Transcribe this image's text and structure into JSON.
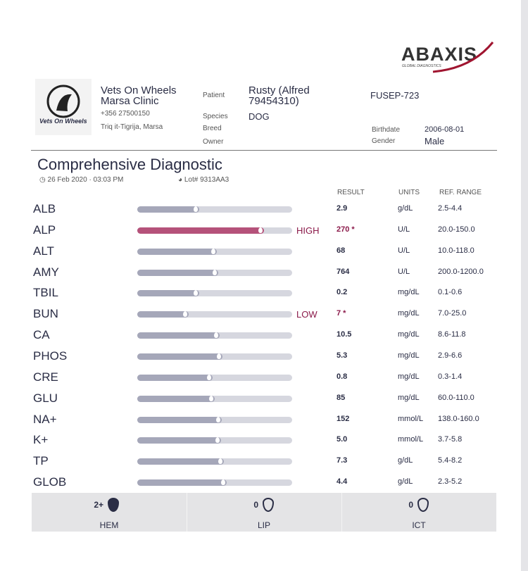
{
  "header": {
    "brand": "ABAXIS",
    "tagline": "GLOBAL DIAGNOSTICS",
    "logo_text": "Vets On Wheels",
    "clinic_name": "Vets On Wheels",
    "clinic_branch": "Marsa Clinic",
    "phone": "+356 27500150",
    "address": "Triq it-Tigrija, Marsa"
  },
  "patient": {
    "labels": [
      "Patient",
      "Species",
      "Breed",
      "Owner"
    ],
    "name": "Rusty (Alfred 79454310)",
    "species": "DOG",
    "id": "FUSEP-723",
    "birthdate_label": "Birthdate",
    "birthdate": "2006-08-01",
    "gender_label": "Gender",
    "gender": "Male"
  },
  "report": {
    "title": "Comprehensive Diagnostic",
    "date": "26 Feb 2020 · 03:03 PM",
    "lot": "Lot# 9313AA3"
  },
  "table": {
    "columns": [
      "RESULT",
      "UNITS",
      "REF. RANGE"
    ],
    "rows": [
      {
        "test": "ALB",
        "flag": null,
        "result": "2.9",
        "units": "g/dL",
        "range": "2.5-4.4"
      },
      {
        "test": "ALP",
        "flag": "HIGH",
        "result": "270 *",
        "units": "U/L",
        "range": "20.0-150.0"
      },
      {
        "test": "ALT",
        "flag": null,
        "result": "68",
        "units": "U/L",
        "range": "10.0-118.0"
      },
      {
        "test": "AMY",
        "flag": null,
        "result": "764",
        "units": "U/L",
        "range": "200.0-1200.0"
      },
      {
        "test": "TBIL",
        "flag": null,
        "result": "0.2",
        "units": "mg/dL",
        "range": "0.1-0.6"
      },
      {
        "test": "BUN",
        "flag": "LOW",
        "result": "7 *",
        "units": "mg/dL",
        "range": "7.0-25.0"
      },
      {
        "test": "CA",
        "flag": null,
        "result": "10.5",
        "units": "mg/dL",
        "range": "8.6-11.8"
      },
      {
        "test": "PHOS",
        "flag": null,
        "result": "5.3",
        "units": "mg/dL",
        "range": "2.9-6.6"
      },
      {
        "test": "CRE",
        "flag": null,
        "result": "0.8",
        "units": "mg/dL",
        "range": "0.3-1.4"
      },
      {
        "test": "GLU",
        "flag": null,
        "result": "85",
        "units": "mg/dL",
        "range": "60.0-110.0"
      },
      {
        "test": "NA+",
        "flag": null,
        "result": "152",
        "units": "mmol/L",
        "range": "138.0-160.0"
      },
      {
        "test": "K+",
        "flag": null,
        "result": "5.0",
        "units": "mmol/L",
        "range": "3.7-5.8"
      },
      {
        "test": "TP",
        "flag": null,
        "result": "7.3",
        "units": "g/dL",
        "range": "5.4-8.2"
      },
      {
        "test": "GLOB",
        "flag": null,
        "result": "4.4",
        "units": "g/dL",
        "range": "2.3-5.2"
      }
    ]
  },
  "indices": [
    {
      "value": "2+",
      "label": "HEM"
    },
    {
      "value": "0",
      "label": "LIP"
    },
    {
      "value": "0",
      "label": "ICT"
    }
  ]
}
